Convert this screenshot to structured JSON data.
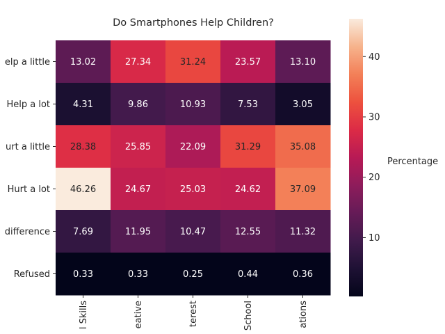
{
  "chart_data": {
    "type": "heatmap",
    "title": "Do Smartphones Help Children?",
    "rows": [
      "elp a little",
      "Help a lot",
      "urt a little",
      "Hurt a lot",
      "difference",
      "Refused"
    ],
    "columns": [
      "l Skills",
      "eative",
      "terest",
      "School",
      "ations"
    ],
    "values": [
      [
        13.02,
        27.34,
        31.24,
        23.57,
        13.1
      ],
      [
        4.31,
        9.86,
        10.93,
        7.53,
        3.05
      ],
      [
        28.38,
        25.85,
        22.09,
        31.29,
        35.08
      ],
      [
        46.26,
        24.67,
        25.03,
        24.62,
        37.09
      ],
      [
        7.69,
        11.95,
        10.47,
        12.55,
        11.32
      ],
      [
        0.33,
        0.33,
        0.25,
        0.44,
        0.36
      ]
    ],
    "value_labels": [
      [
        "13.02",
        "27.34",
        "31.24",
        "23.57",
        "13.10"
      ],
      [
        "4.31",
        "9.86",
        "10.93",
        "7.53",
        "3.05"
      ],
      [
        "28.38",
        "25.85",
        "22.09",
        "31.29",
        "35.08"
      ],
      [
        "46.26",
        "24.67",
        "25.03",
        "24.62",
        "37.09"
      ],
      [
        "7.69",
        "11.95",
        "10.47",
        "12.55",
        "11.32"
      ],
      [
        "0.33",
        "0.33",
        "0.25",
        "0.44",
        "0.36"
      ]
    ],
    "colorbar": {
      "label": "Percentage",
      "ticks": [
        "10",
        "20",
        "30",
        "40"
      ],
      "tick_values": [
        10,
        20,
        30,
        40
      ],
      "vmin": 0.25,
      "vmax": 46.26,
      "colormap": "rocket"
    },
    "grid": false,
    "legend": "colorbar-right"
  }
}
